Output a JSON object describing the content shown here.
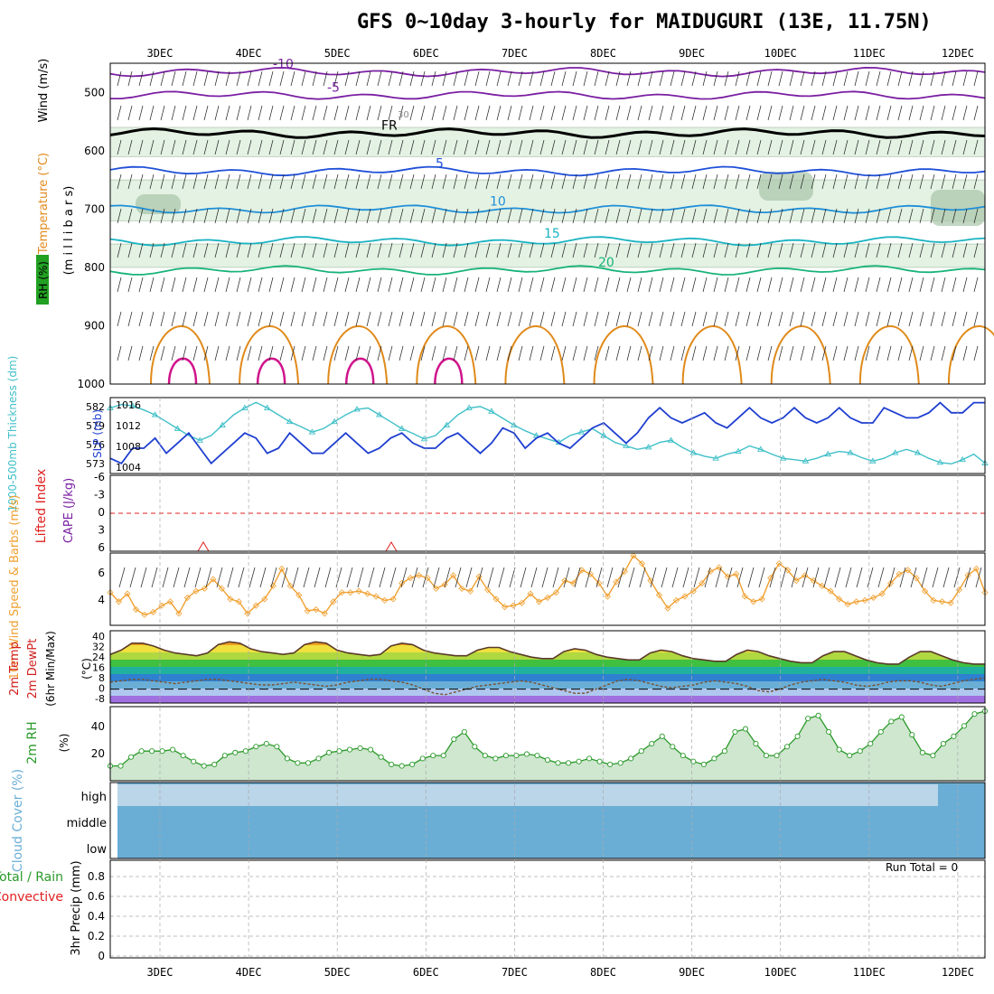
{
  "title": "GFS 0~10day 3-hourly for MAIDUGURI (13E, 11.75N)",
  "run_total": "Run Total = 0",
  "colors": {
    "rh_fill_light": "#e3f2e3",
    "rh_fill_dark": "#a8c4a8",
    "temp_purple": "#7a1fa2",
    "temp_freezing": "#000000",
    "temp_blue": "#1f4fd8",
    "temp_lightblue": "#1f8fd8",
    "temp_cyan": "#19b3c2",
    "temp_green": "#19b37a",
    "temp_orange": "#e08a1a",
    "temp_magenta": "#d0148c",
    "slp": "#1f3fd0",
    "thickness": "#40c0c8",
    "lifted_index": "#e02020",
    "wind_speed": "#f0a030",
    "rh2m": "#2a9a2a",
    "cloud": "#6aaed6",
    "grid": "#aaaaaa"
  },
  "chart_data": [
    {
      "panel": "upper-air",
      "type": "contour",
      "x_ticks": [
        "3DEC",
        "4DEC",
        "5DEC",
        "6DEC",
        "7DEC",
        "8DEC",
        "9DEC",
        "10DEC",
        "11DEC",
        "12DEC"
      ],
      "y_label_rh": "RH (%)",
      "y_label_temp": "Temperature (°C)",
      "y_label_wind": "Wind (m/s)",
      "y_label_axis": "(m i l l i b a r s)",
      "y_ticks": [
        500,
        600,
        700,
        800,
        900,
        1000
      ],
      "ylim": [
        450,
        1000
      ],
      "isotherms": [
        {
          "level": -10,
          "label": "-10",
          "pressure": 465
        },
        {
          "level": -5,
          "label": "-5",
          "pressure": 505
        },
        {
          "level": 0,
          "label": "FR",
          "pressure": 570
        },
        {
          "level": 5,
          "label": "5",
          "pressure": 635
        },
        {
          "level": 10,
          "label": "10",
          "pressure": 700
        },
        {
          "level": 15,
          "label": "15",
          "pressure": 755
        },
        {
          "level": 20,
          "label": "20",
          "pressure": 805
        }
      ],
      "rh_label": "30"
    },
    {
      "panel": "slp-thickness",
      "type": "line",
      "y_label_left": "1000-500mb Thickness (dm)",
      "y_label_right": "SLP (mb)",
      "left_ticks": [
        "582",
        "579",
        "576",
        "573"
      ],
      "right_ticks": [
        "1016",
        "1012",
        "1008",
        "1004"
      ],
      "slp_ylim": [
        1002,
        1017
      ],
      "slp": [
        1005,
        1004,
        1007,
        1007,
        1009,
        1006,
        1008,
        1010,
        1007,
        1004,
        1006,
        1008,
        1010,
        1009,
        1006,
        1007,
        1010,
        1008,
        1006,
        1006,
        1008,
        1010,
        1008,
        1006,
        1007,
        1009,
        1010,
        1008,
        1007,
        1007,
        1009,
        1010,
        1008,
        1006,
        1008,
        1011,
        1010,
        1007,
        1009,
        1010,
        1008,
        1007,
        1009,
        1011,
        1012,
        1010,
        1008,
        1010,
        1013,
        1015,
        1013,
        1012,
        1013,
        1014,
        1012,
        1011,
        1013,
        1015,
        1013,
        1012,
        1013,
        1015,
        1013,
        1012,
        1013,
        1015,
        1013,
        1012,
        1012,
        1015,
        1014,
        1013,
        1013,
        1014,
        1016,
        1014,
        1014,
        1016,
        1016
      ],
      "thickness": [
        581.5,
        582,
        581.8,
        581.2,
        580.5,
        579.5,
        578.5,
        577.5,
        576.8,
        577.5,
        579,
        580.5,
        581.5,
        582.3,
        581.5,
        580.5,
        579.5,
        578.8,
        578,
        578.5,
        579.5,
        580.5,
        581.3,
        581.5,
        580.5,
        579.5,
        578.5,
        577.8,
        577,
        577.5,
        579,
        580.5,
        581.5,
        581.7,
        581,
        580,
        579,
        578.2,
        577.5,
        577,
        576.5,
        577.5,
        578,
        578.5,
        577.5,
        576.5,
        576,
        575.5,
        575.8,
        576.5,
        576.8,
        575.8,
        575,
        574.5,
        574.2,
        574.8,
        575.2,
        576,
        575.5,
        574.8,
        574.2,
        574,
        573.8,
        574.2,
        574.8,
        575.2,
        575,
        574.3,
        573.8,
        574.2,
        575,
        575.5,
        575,
        574.2,
        573.6,
        573.4,
        574,
        574.8,
        573.5
      ]
    },
    {
      "panel": "cape-li",
      "type": "line",
      "y_label_li": "Lifted Index",
      "y_label_cape": "CAPE (J/kg)",
      "y_ticks": [
        "-6",
        "-3",
        "0",
        "3",
        "6"
      ],
      "ylim": [
        -6,
        6
      ],
      "lifted_index_points": [
        {
          "time": "3DEC18",
          "value": 6
        },
        {
          "time": "5DEC15",
          "value": 6
        }
      ]
    },
    {
      "panel": "wind10m",
      "type": "line",
      "y_label": "10m Wind Speed & Barbs (m/s)",
      "y_ticks": [
        "6",
        "4"
      ],
      "ylim": [
        2,
        7.5
      ],
      "speed": [
        4.5,
        3.8,
        4.4,
        3.2,
        2.8,
        3.0,
        3.5,
        3.8,
        2.9,
        4.1,
        4.6,
        4.8,
        5.5,
        4.8,
        4.0,
        3.8,
        2.9,
        3.5,
        4.0,
        5.0,
        6.3,
        5.0,
        4.3,
        3.1,
        3.2,
        2.9,
        3.8,
        4.5,
        4.5,
        4.6,
        4.4,
        4.2,
        3.9,
        4.0,
        5.2,
        5.6,
        5.8,
        5.6,
        4.8,
        5.1,
        5.8,
        4.8,
        4.6,
        5.7,
        4.7,
        4.0,
        3.4,
        3.5,
        3.7,
        4.4,
        3.8,
        4.1,
        4.5,
        5.4,
        5.2,
        6.2,
        5.9,
        5.2,
        4.2,
        5.3,
        6.1,
        7.3,
        6.7,
        5.4,
        4.3,
        3.3,
        3.9,
        4.2,
        4.6,
        5.2,
        6.1,
        6.4,
        5.7,
        5.9,
        4.2,
        3.8,
        4.0,
        5.6,
        6.7,
        6.2,
        5.4,
        5.8,
        5.4,
        5.0,
        4.6,
        4.0,
        3.6,
        3.8,
        3.9,
        4.1,
        4.4,
        5.2,
        5.9,
        6.2,
        5.6,
        4.6,
        3.9,
        3.8,
        3.7,
        4.7,
        5.8,
        6.3,
        4.5
      ]
    },
    {
      "panel": "temp2m",
      "type": "area",
      "y_label": "2m Temp 2m DewPt (6hr Min/Max) (°C)",
      "y_ticks": [
        "40",
        "32",
        "24",
        "16",
        "8",
        "0",
        "-8"
      ],
      "ylim": [
        -10,
        42
      ],
      "temp": [
        25,
        28,
        33,
        33,
        31,
        28,
        26,
        25,
        24,
        26,
        32,
        34,
        33,
        29,
        27,
        26,
        25,
        26,
        32,
        34,
        33,
        28,
        26,
        25,
        24,
        25,
        31,
        33,
        32,
        28,
        26,
        25,
        24,
        24,
        28,
        30,
        30,
        27,
        25,
        23,
        22,
        22,
        27,
        29,
        28,
        25,
        23,
        22,
        21,
        21,
        26,
        28,
        27,
        24,
        22,
        21,
        20,
        20,
        25,
        28,
        27,
        24,
        22,
        20,
        19,
        19,
        24,
        27,
        27,
        24,
        21,
        19,
        18,
        18,
        23,
        27,
        27,
        24,
        21,
        19,
        18,
        18
      ],
      "dewpoint": [
        5,
        6,
        7,
        7,
        6,
        5,
        4,
        5,
        6,
        7,
        7,
        6,
        5,
        4,
        3,
        3,
        4,
        5,
        4,
        3,
        2,
        3,
        5,
        6,
        7,
        7,
        6,
        5,
        3,
        0,
        -3,
        -4,
        -2,
        0,
        2,
        3,
        4,
        5,
        6,
        5,
        3,
        1,
        -1,
        -3,
        -3,
        0,
        3,
        6,
        7,
        6,
        4,
        2,
        1,
        2,
        3,
        5,
        6,
        5,
        4,
        2,
        -1,
        -2,
        0,
        3,
        5,
        6,
        7,
        6,
        5,
        3,
        2,
        3,
        5,
        6,
        6,
        5,
        3,
        2,
        4,
        6,
        7,
        8
      ]
    },
    {
      "panel": "rh2m",
      "type": "area",
      "y_label": "2m RH (%)",
      "y_ticks": [
        "40",
        "20"
      ],
      "ylim": [
        5,
        55
      ],
      "rh": [
        15,
        15,
        21,
        25,
        25,
        25,
        26,
        22,
        18,
        15,
        16,
        22,
        24,
        25,
        28,
        30,
        28,
        20,
        17,
        17,
        20,
        24,
        25,
        26,
        27,
        26,
        21,
        16,
        15,
        16,
        20,
        22,
        22,
        33,
        38,
        28,
        22,
        20,
        22,
        22,
        23,
        22,
        19,
        17,
        17,
        18,
        20,
        18,
        16,
        17,
        20,
        25,
        30,
        35,
        28,
        22,
        18,
        16,
        20,
        25,
        38,
        40,
        30,
        22,
        22,
        28,
        35,
        47,
        49,
        38,
        26,
        22,
        25,
        30,
        38,
        45,
        48,
        36,
        24,
        22,
        30,
        35,
        42,
        50,
        52
      ]
    },
    {
      "panel": "cloud",
      "type": "bar",
      "y_label": "Cloud Cover (%)",
      "levels": [
        "high",
        "middle",
        "low"
      ],
      "note": "Nearly full cloud cover at all levels throughout"
    },
    {
      "panel": "precip",
      "type": "bar",
      "y_label_total": "Total / Rain",
      "y_label_conv": "Convective",
      "y_label": "3hr Precip (mm)",
      "y_ticks": [
        "0.8",
        "0.6",
        "0.4",
        "0.2",
        "0"
      ],
      "ylim": [
        0,
        1.0
      ],
      "values": []
    }
  ]
}
